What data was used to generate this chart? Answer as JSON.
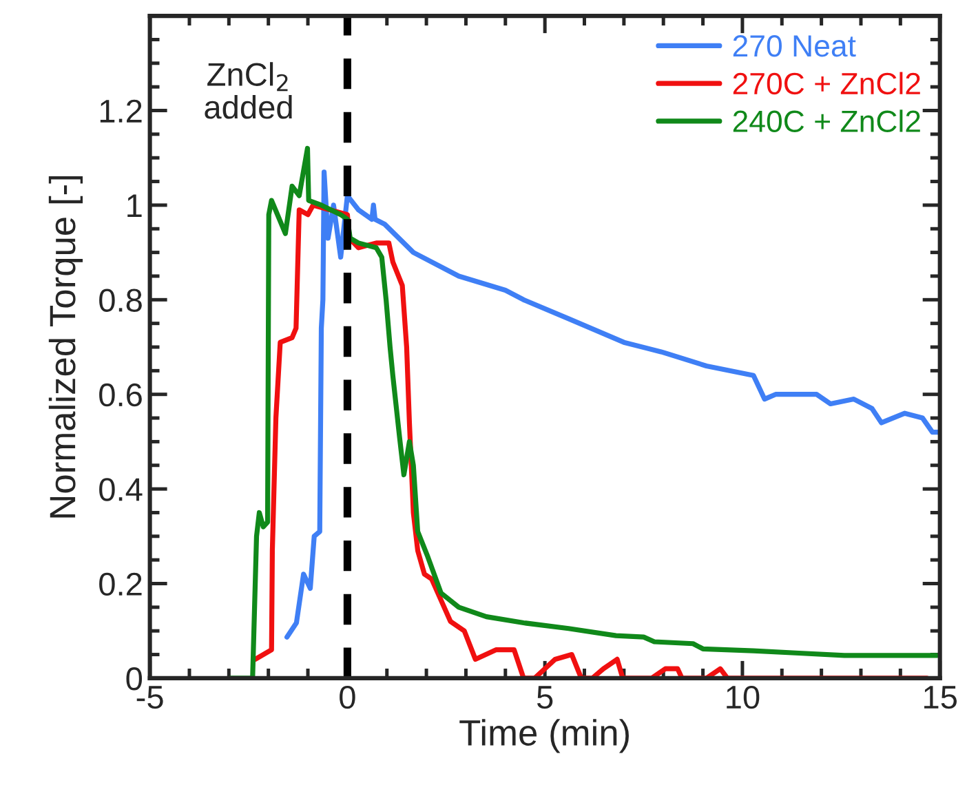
{
  "chart_data": {
    "type": "line",
    "xlabel": "Time (min)",
    "ylabel": "Normalized Torque [-]",
    "xlim": [
      -5,
      15
    ],
    "ylim": [
      0,
      1.4
    ],
    "xticks": [
      -5,
      0,
      5,
      10,
      15
    ],
    "yticks": [
      0,
      0.2,
      0.4,
      0.6,
      0.8,
      1,
      1.2,
      {
        "value": 1.4,
        "label": null
      }
    ],
    "legend": "top right",
    "grid": false,
    "marker": "none",
    "line_style": "solid",
    "annotations": [
      "ZnCl$_{2}$\nadded"
    ],
    "ref_lines": [
      {
        "axis": "x",
        "value": 0,
        "color": "#000000",
        "line_style": "dashed"
      }
    ],
    "series": [
      {
        "name": "270 Neat",
        "color": "#3f7ff5",
        "x": [
          -1.53,
          -1.29,
          -1.11,
          -0.94,
          -0.84,
          -0.7,
          -0.66,
          -0.62,
          -0.59,
          -0.49,
          -0.35,
          -0.17,
          0,
          0.28,
          0.62,
          0.66,
          0.7,
          0.94,
          1.67,
          2.82,
          4.0,
          4.46,
          5.6,
          7.0,
          7.94,
          9.09,
          10.28,
          10.56,
          10.84,
          11.88,
          12.23,
          12.82,
          13.28,
          13.52,
          14.11,
          14.56,
          14.81,
          14.98
        ],
        "values": [
          0.087,
          0.117,
          0.22,
          0.19,
          0.3,
          0.31,
          0.74,
          0.8,
          1.07,
          0.93,
          1.0,
          0.89,
          1.02,
          0.99,
          0.97,
          1.0,
          0.97,
          0.96,
          0.9,
          0.85,
          0.82,
          0.8,
          0.76,
          0.71,
          0.69,
          0.66,
          0.64,
          0.59,
          0.6,
          0.6,
          0.58,
          0.59,
          0.57,
          0.54,
          0.56,
          0.55,
          0.52,
          0.52
        ]
      },
      {
        "name": "270C + ZnCl2",
        "color": "#f01010",
        "x": [
          -2.33,
          -1.92,
          -1.9,
          -1.81,
          -1.7,
          -1.4,
          -1.3,
          -1.22,
          -1.0,
          -0.87,
          0,
          0.05,
          0.28,
          0.73,
          1.05,
          1.15,
          1.39,
          1.5,
          1.57,
          1.67,
          1.78,
          1.95,
          2.13,
          2.61,
          2.96,
          3.24,
          3.76,
          4.22,
          4.46,
          4.74,
          5.0,
          5.26,
          5.68,
          5.92,
          6.2,
          6.48,
          6.83,
          6.97,
          7.7,
          8.05,
          8.36,
          8.47,
          9.09,
          9.44,
          9.62,
          14.67
        ],
        "values": [
          0.04,
          0.06,
          0.27,
          0.55,
          0.71,
          0.72,
          0.74,
          0.99,
          0.98,
          1.0,
          0.98,
          0.93,
          0.91,
          0.92,
          0.92,
          0.88,
          0.83,
          0.7,
          0.54,
          0.35,
          0.27,
          0.22,
          0.21,
          0.12,
          0.1,
          0.04,
          0.06,
          0.06,
          0,
          0,
          0.02,
          0.04,
          0.05,
          0,
          0,
          0.02,
          0.04,
          0,
          0,
          0.02,
          0.02,
          0,
          0,
          0.02,
          0,
          0
        ]
      },
      {
        "name": "240C + ZnCl2",
        "color": "#10891a",
        "x": [
          -2.96,
          -2.4,
          -2.3,
          -2.23,
          -2.13,
          -2.02,
          -1.99,
          -1.92,
          -1.57,
          -1.4,
          -1.22,
          -1.01,
          -0.98,
          -0.66,
          -0.17,
          0,
          0.07,
          0.28,
          0.73,
          0.87,
          0.98,
          1.08,
          1.15,
          1.32,
          1.43,
          1.57,
          1.67,
          1.78,
          2.02,
          2.37,
          2.82,
          3.52,
          4.46,
          5.6,
          6.8,
          7.5,
          7.77,
          8.75,
          9.0,
          10.28,
          11.43,
          12.58,
          14.91
        ],
        "values": [
          0,
          0,
          0.3,
          0.35,
          0.32,
          0.33,
          0.98,
          1.01,
          0.94,
          1.04,
          1.02,
          1.12,
          1.01,
          1.0,
          0.98,
          0.97,
          0.93,
          0.92,
          0.91,
          0.89,
          0.8,
          0.7,
          0.64,
          0.51,
          0.43,
          0.5,
          0.45,
          0.31,
          0.26,
          0.18,
          0.15,
          0.13,
          0.117,
          0.105,
          0.09,
          0.087,
          0.077,
          0.073,
          0.062,
          0.058,
          0.053,
          0.048,
          0.048
        ]
      }
    ]
  }
}
